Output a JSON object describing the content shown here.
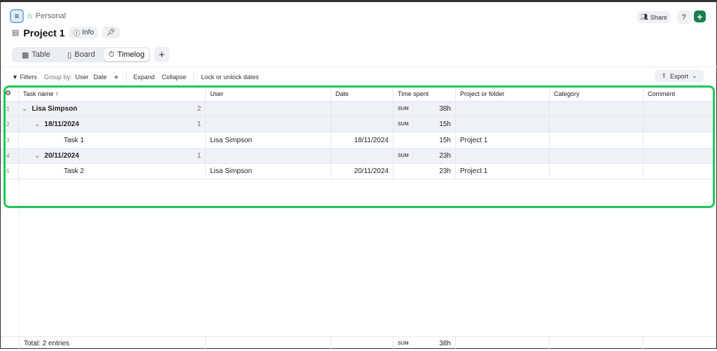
{
  "header": {
    "breadcrumb": "Personal",
    "title": "Project 1",
    "info_label": "Info",
    "share_label": "Share"
  },
  "tabs": [
    {
      "label": "Table",
      "icon": "table-icon"
    },
    {
      "label": "Board",
      "icon": "board-icon"
    },
    {
      "label": "Timelog",
      "icon": "stopwatch-icon",
      "active": true
    }
  ],
  "toolbar": {
    "filters": "Filters",
    "group_by": "Group by:",
    "group_user": "User",
    "group_date": "Date",
    "expand": "Expand",
    "collapse": "Collapse",
    "lock": "Lock or unlock dates",
    "export": "Export"
  },
  "columns": [
    "Task name",
    "User",
    "Date",
    "Time spent",
    "Project or folder",
    "Category",
    "Comment"
  ],
  "rows": [
    {
      "n": "1",
      "task": "Lisa Simpson",
      "count": "2",
      "user": "",
      "date": "",
      "sum": "SUM",
      "time": "38h",
      "project": "",
      "group": true,
      "level": 0
    },
    {
      "n": "2",
      "task": "18/11/2024",
      "count": "1",
      "user": "",
      "date": "",
      "sum": "SUM",
      "time": "15h",
      "project": "",
      "group": true,
      "level": 1
    },
    {
      "n": "3",
      "task": "Task 1",
      "count": "",
      "user": "Lisa Simpson",
      "date": "18/11/2024",
      "sum": "",
      "time": "15h",
      "project": "Project 1",
      "group": false,
      "level": 2
    },
    {
      "n": "4",
      "task": "20/11/2024",
      "count": "1",
      "user": "",
      "date": "",
      "sum": "SUM",
      "time": "23h",
      "project": "",
      "group": true,
      "level": 1
    },
    {
      "n": "5",
      "task": "Task 2",
      "count": "",
      "user": "Lisa Simpson",
      "date": "20/11/2024",
      "sum": "",
      "time": "23h",
      "project": "Project 1",
      "group": false,
      "level": 2
    }
  ],
  "footer": {
    "total": "Total: 2 entries",
    "sum": "SUM",
    "time": "38h"
  },
  "colors": {
    "accent": "#1a7f4e",
    "highlight": "#1ec85a"
  }
}
